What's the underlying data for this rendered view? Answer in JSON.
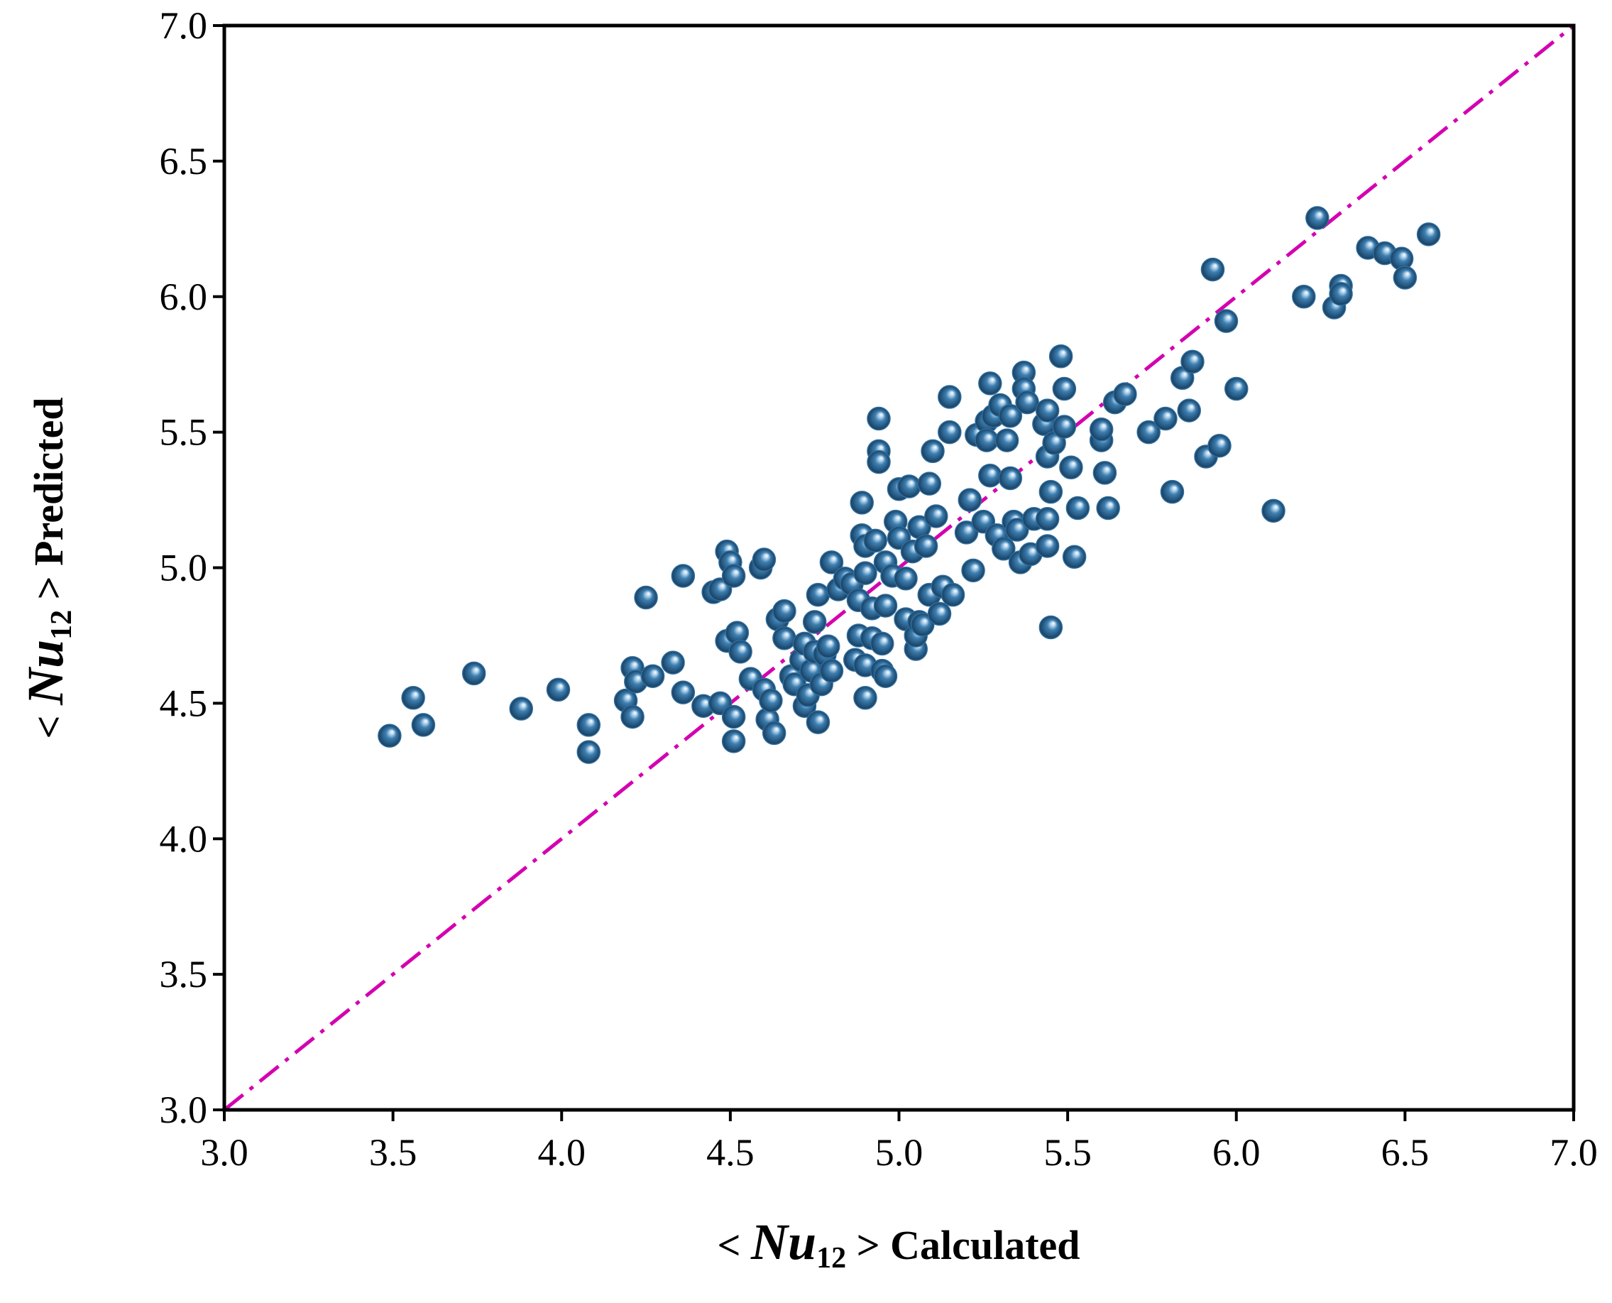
{
  "chart_data": {
    "type": "scatter",
    "title": "",
    "xlabel": {
      "prefix": "< ",
      "symbol": "Nu",
      "subscript": "12",
      "suffix": " > Calculated"
    },
    "ylabel": {
      "prefix": "< ",
      "symbol": "Nu",
      "subscript": "12",
      "suffix": " > Predicted"
    },
    "xlim": [
      3.0,
      7.0
    ],
    "ylim": [
      3.0,
      7.0
    ],
    "xticks": [
      "3.0",
      "3.5",
      "4.0",
      "4.5",
      "5.0",
      "5.5",
      "6.0",
      "6.5",
      "7.0"
    ],
    "yticks": [
      "3.0",
      "3.5",
      "4.0",
      "4.5",
      "5.0",
      "5.5",
      "6.0",
      "6.5",
      "7.0"
    ],
    "grid": false,
    "marker_color": "#2f6d9c",
    "reference_line": {
      "style": "dash-dot",
      "color": "#d400b0",
      "from": [
        3.0,
        3.0
      ],
      "to": [
        7.0,
        7.0
      ]
    },
    "series": [
      {
        "points": [
          [
            3.49,
            4.38
          ],
          [
            3.56,
            4.52
          ],
          [
            3.59,
            4.42
          ],
          [
            3.74,
            4.61
          ],
          [
            3.88,
            4.48
          ],
          [
            3.99,
            4.55
          ],
          [
            4.08,
            4.42
          ],
          [
            4.08,
            4.32
          ],
          [
            4.19,
            4.51
          ],
          [
            4.21,
            4.63
          ],
          [
            4.21,
            4.45
          ],
          [
            4.22,
            4.58
          ],
          [
            4.25,
            4.89
          ],
          [
            4.27,
            4.6
          ],
          [
            4.33,
            4.65
          ],
          [
            4.36,
            4.97
          ],
          [
            4.36,
            4.54
          ],
          [
            4.42,
            4.49
          ],
          [
            4.45,
            4.91
          ],
          [
            4.47,
            4.92
          ],
          [
            4.47,
            4.5
          ],
          [
            4.49,
            5.06
          ],
          [
            4.49,
            4.73
          ],
          [
            4.5,
            5.02
          ],
          [
            4.51,
            4.97
          ],
          [
            4.51,
            4.45
          ],
          [
            4.51,
            4.36
          ],
          [
            4.52,
            4.76
          ],
          [
            4.53,
            4.69
          ],
          [
            4.56,
            4.59
          ],
          [
            4.59,
            5.0
          ],
          [
            4.6,
            5.03
          ],
          [
            4.6,
            4.55
          ],
          [
            4.61,
            4.44
          ],
          [
            4.62,
            4.51
          ],
          [
            4.63,
            4.39
          ],
          [
            4.64,
            4.81
          ],
          [
            4.66,
            4.84
          ],
          [
            4.66,
            4.74
          ],
          [
            4.68,
            4.6
          ],
          [
            4.69,
            4.57
          ],
          [
            4.71,
            4.66
          ],
          [
            4.72,
            4.72
          ],
          [
            4.72,
            4.49
          ],
          [
            4.73,
            4.53
          ],
          [
            4.74,
            4.62
          ],
          [
            4.75,
            4.8
          ],
          [
            4.75,
            4.69
          ],
          [
            4.76,
            4.9
          ],
          [
            4.76,
            4.43
          ],
          [
            4.77,
            4.57
          ],
          [
            4.78,
            4.68
          ],
          [
            4.79,
            4.71
          ],
          [
            4.8,
            5.02
          ],
          [
            4.8,
            4.62
          ],
          [
            4.82,
            4.92
          ],
          [
            4.84,
            4.96
          ],
          [
            4.86,
            4.94
          ],
          [
            4.87,
            4.66
          ],
          [
            4.88,
            4.75
          ],
          [
            4.88,
            4.88
          ],
          [
            4.89,
            5.12
          ],
          [
            4.89,
            5.24
          ],
          [
            4.9,
            5.08
          ],
          [
            4.9,
            4.98
          ],
          [
            4.9,
            4.64
          ],
          [
            4.9,
            4.52
          ],
          [
            4.92,
            4.85
          ],
          [
            4.92,
            4.74
          ],
          [
            4.93,
            5.1
          ],
          [
            4.94,
            5.43
          ],
          [
            4.94,
            5.39
          ],
          [
            4.94,
            5.55
          ],
          [
            4.95,
            4.72
          ],
          [
            4.95,
            4.62
          ],
          [
            4.96,
            5.02
          ],
          [
            4.96,
            4.86
          ],
          [
            4.96,
            4.6
          ],
          [
            4.98,
            4.97
          ],
          [
            4.99,
            5.17
          ],
          [
            5.0,
            5.29
          ],
          [
            5.0,
            5.11
          ],
          [
            5.02,
            4.96
          ],
          [
            5.02,
            4.81
          ],
          [
            5.03,
            5.3
          ],
          [
            5.04,
            5.06
          ],
          [
            5.05,
            4.7
          ],
          [
            5.05,
            4.75
          ],
          [
            5.06,
            5.15
          ],
          [
            5.06,
            4.8
          ],
          [
            5.07,
            4.79
          ],
          [
            5.08,
            5.08
          ],
          [
            5.09,
            4.9
          ],
          [
            5.09,
            5.31
          ],
          [
            5.1,
            5.43
          ],
          [
            5.11,
            5.19
          ],
          [
            5.12,
            4.83
          ],
          [
            5.13,
            4.93
          ],
          [
            5.15,
            5.63
          ],
          [
            5.15,
            5.5
          ],
          [
            5.16,
            4.9
          ],
          [
            5.2,
            5.13
          ],
          [
            5.21,
            5.25
          ],
          [
            5.22,
            4.99
          ],
          [
            5.23,
            5.49
          ],
          [
            5.25,
            5.17
          ],
          [
            5.26,
            5.54
          ],
          [
            5.26,
            5.47
          ],
          [
            5.27,
            5.68
          ],
          [
            5.27,
            5.34
          ],
          [
            5.28,
            5.56
          ],
          [
            5.29,
            5.12
          ],
          [
            5.3,
            5.6
          ],
          [
            5.31,
            5.07
          ],
          [
            5.32,
            5.47
          ],
          [
            5.33,
            5.33
          ],
          [
            5.33,
            5.56
          ],
          [
            5.34,
            5.17
          ],
          [
            5.35,
            5.14
          ],
          [
            5.36,
            5.02
          ],
          [
            5.37,
            5.72
          ],
          [
            5.37,
            5.66
          ],
          [
            5.38,
            5.61
          ],
          [
            5.39,
            5.05
          ],
          [
            5.4,
            5.18
          ],
          [
            5.43,
            5.53
          ],
          [
            5.44,
            5.18
          ],
          [
            5.44,
            5.58
          ],
          [
            5.44,
            5.41
          ],
          [
            5.44,
            5.08
          ],
          [
            5.45,
            5.28
          ],
          [
            5.45,
            4.78
          ],
          [
            5.46,
            5.46
          ],
          [
            5.48,
            5.78
          ],
          [
            5.49,
            5.66
          ],
          [
            5.49,
            5.52
          ],
          [
            5.51,
            5.37
          ],
          [
            5.52,
            5.04
          ],
          [
            5.53,
            5.22
          ],
          [
            5.6,
            5.47
          ],
          [
            5.6,
            5.51
          ],
          [
            5.61,
            5.35
          ],
          [
            5.62,
            5.22
          ],
          [
            5.64,
            5.61
          ],
          [
            5.67,
            5.64
          ],
          [
            5.74,
            5.5
          ],
          [
            5.79,
            5.55
          ],
          [
            5.81,
            5.28
          ],
          [
            5.84,
            5.7
          ],
          [
            5.86,
            5.58
          ],
          [
            5.87,
            5.76
          ],
          [
            5.91,
            5.41
          ],
          [
            5.93,
            6.1
          ],
          [
            5.95,
            5.45
          ],
          [
            5.97,
            5.91
          ],
          [
            6.0,
            5.66
          ],
          [
            6.11,
            5.21
          ],
          [
            6.2,
            6.0
          ],
          [
            6.24,
            6.29
          ],
          [
            6.29,
            5.96
          ],
          [
            6.31,
            6.04
          ],
          [
            6.31,
            6.01
          ],
          [
            6.39,
            6.18
          ],
          [
            6.44,
            6.16
          ],
          [
            6.49,
            6.14
          ],
          [
            6.5,
            6.07
          ],
          [
            6.57,
            6.23
          ]
        ]
      }
    ]
  }
}
